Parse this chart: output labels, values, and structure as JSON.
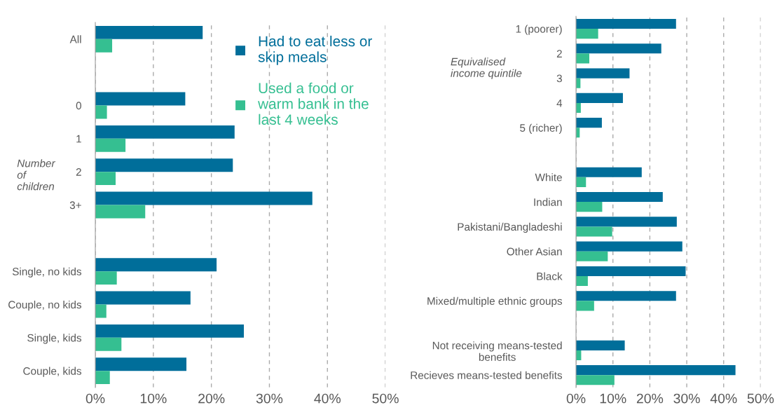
{
  "chart_data": [
    {
      "type": "bar",
      "orientation": "horizontal",
      "categories": [
        "All",
        null,
        "0",
        "1",
        "2",
        "3+",
        null,
        "Single, no kids",
        "Couple, no kids",
        "Single, kids",
        "Couple, kids"
      ],
      "series": [
        {
          "name": "Had to eat less or skip meals",
          "color": "#006e9a",
          "values": [
            18.5,
            null,
            15.5,
            24.0,
            23.7,
            37.4,
            null,
            20.9,
            16.4,
            25.6,
            15.7
          ]
        },
        {
          "name": "Used a food or warm bank in the last 4 weeks",
          "color": "#35bf91",
          "values": [
            2.9,
            null,
            2.0,
            5.2,
            3.5,
            8.6,
            null,
            3.7,
            1.9,
            4.5,
            2.5
          ]
        }
      ],
      "xlim": [
        0,
        50
      ],
      "xticks": [
        {
          "value": 0,
          "label": "0%"
        },
        {
          "value": 10,
          "label": "10%"
        },
        {
          "value": 20,
          "label": "20%"
        },
        {
          "value": 30,
          "label": "30%"
        },
        {
          "value": 40,
          "label": "40%"
        },
        {
          "value": 50,
          "label": "50%"
        }
      ],
      "grid": "x",
      "legend": "top right",
      "annotations": [
        "Number\nof\nchildren"
      ]
    },
    {
      "type": "bar",
      "orientation": "horizontal",
      "categories": [
        "1 (poorer)",
        "2",
        "3",
        "4",
        "5 (richer)",
        null,
        "White",
        "Indian",
        "Pakistani/Bangladeshi",
        "Other Asian",
        "Black",
        "Mixed/multiple ethnic groups",
        null,
        "Not receiving means-tested\nbenefits",
        "Recieves means-tested benefits"
      ],
      "series": [
        {
          "color": "#006e9a",
          "values": [
            27.1,
            23.1,
            14.5,
            12.7,
            7.0,
            null,
            17.8,
            23.5,
            27.3,
            28.8,
            29.7,
            27.1,
            null,
            13.2,
            43.2
          ]
        },
        {
          "color": "#35bf91",
          "values": [
            6.0,
            3.6,
            1.2,
            1.3,
            1.0,
            null,
            2.7,
            7.1,
            9.8,
            8.6,
            3.2,
            4.9,
            null,
            1.4,
            10.4
          ]
        }
      ],
      "xlim": [
        0,
        50
      ],
      "xticks": [
        {
          "value": 0,
          "label": "0%"
        },
        {
          "value": 10,
          "label": "10%"
        },
        {
          "value": 20,
          "label": "20%"
        },
        {
          "value": 30,
          "label": "30%"
        },
        {
          "value": 40,
          "label": "40%"
        },
        {
          "value": 50,
          "label": "50%"
        }
      ],
      "grid": "x",
      "annotations": [
        "Equivalised\nincome quintile"
      ]
    }
  ]
}
